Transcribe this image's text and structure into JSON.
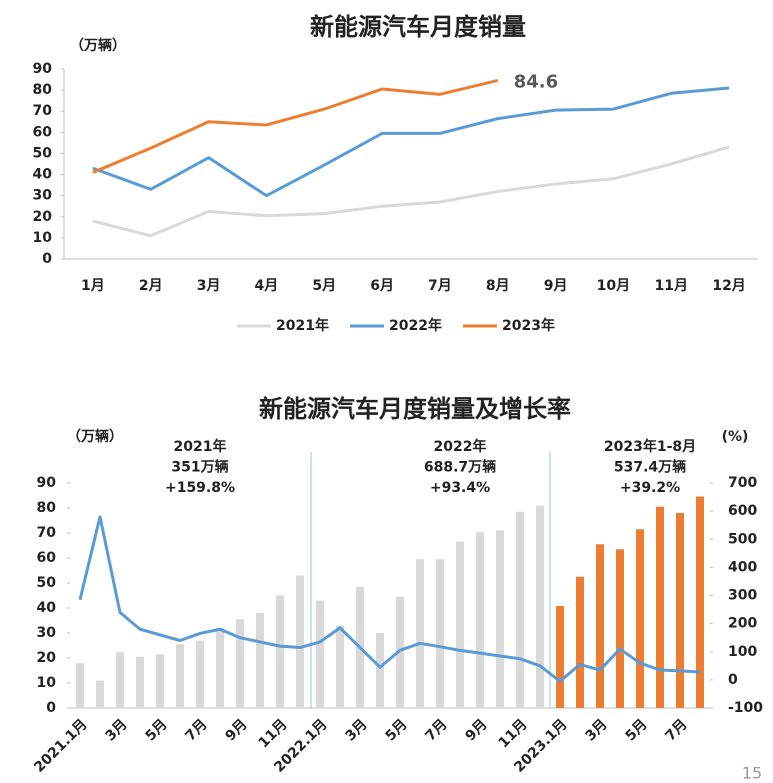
{
  "chart_data": [
    {
      "type": "line",
      "title": "新能源汽车月度销量",
      "y_label": "（万辆）",
      "categories": [
        "1月",
        "2月",
        "3月",
        "4月",
        "5月",
        "6月",
        "7月",
        "8月",
        "9月",
        "10月",
        "11月",
        "12月"
      ],
      "series": [
        {
          "name": "2021年",
          "color": "#d9d9d9",
          "values": [
            18,
            11,
            22.5,
            20.5,
            21.5,
            25,
            27,
            32,
            35.5,
            38,
            45,
            53
          ]
        },
        {
          "name": "2022年",
          "color": "#5b9bd5",
          "values": [
            43,
            33,
            48,
            30,
            44.5,
            59.5,
            59.5,
            66.5,
            70.5,
            71,
            78.5,
            81
          ]
        },
        {
          "name": "2023年",
          "color": "#ed7d31",
          "values": [
            41,
            52.5,
            65,
            63.5,
            71,
            80.5,
            78,
            84.6,
            null,
            null,
            null,
            null
          ]
        }
      ],
      "ylim": [
        0,
        90
      ],
      "yticks": [
        0,
        10,
        20,
        30,
        40,
        50,
        60,
        70,
        80,
        90
      ],
      "grid": false,
      "legend": "bottom"
    },
    {
      "type": "bar_line",
      "title": "新能源汽车月度销量及增长率",
      "y_label": "（万辆）",
      "y2_label": "(%)",
      "categories": [
        "2021.1月",
        null,
        "3月",
        null,
        "5月",
        null,
        "7月",
        null,
        "9月",
        null,
        "11月",
        null,
        "2022.1月",
        null,
        "3月",
        null,
        "5月",
        null,
        "7月",
        null,
        "9月",
        null,
        "11月",
        null,
        "2023.1月",
        null,
        "3月",
        null,
        "5月",
        null,
        "7月",
        null
      ],
      "series": [
        {
          "type": "bar",
          "colors": [
            "#d9d9d9",
            "#d9d9d9",
            "#d9d9d9",
            "#d9d9d9",
            "#d9d9d9",
            "#d9d9d9",
            "#d9d9d9",
            "#d9d9d9",
            "#d9d9d9",
            "#d9d9d9",
            "#d9d9d9",
            "#d9d9d9",
            "#d9d9d9",
            "#d9d9d9",
            "#d9d9d9",
            "#d9d9d9",
            "#d9d9d9",
            "#d9d9d9",
            "#d9d9d9",
            "#d9d9d9",
            "#d9d9d9",
            "#d9d9d9",
            "#d9d9d9",
            "#d9d9d9",
            "#ed7d31",
            "#ed7d31",
            "#ed7d31",
            "#ed7d31",
            "#ed7d31",
            "#ed7d31",
            "#ed7d31",
            "#ed7d31"
          ],
          "values": [
            18,
            11,
            22.5,
            20.5,
            21.5,
            25.5,
            27,
            32,
            35.5,
            38,
            45,
            53,
            43,
            33,
            48.5,
            30,
            44.5,
            59.5,
            59.5,
            66.5,
            70.5,
            71,
            78.5,
            81,
            40.8,
            52.5,
            65.5,
            63.5,
            71.5,
            80.5,
            78,
            84.6
          ]
        },
        {
          "type": "line",
          "axis": "y2",
          "color": "#5b9bd5",
          "values": [
            285,
            580,
            240,
            180,
            160,
            140,
            165,
            180,
            150,
            135,
            120,
            115,
            135,
            185,
            115,
            45,
            105,
            130,
            118,
            105,
            95,
            85,
            75,
            50,
            -5,
            55,
            35,
            110,
            60,
            35,
            32,
            28
          ]
        }
      ],
      "ylim": [
        0,
        90
      ],
      "yticks": [
        0,
        10,
        20,
        30,
        40,
        50,
        60,
        70,
        80,
        90
      ],
      "y2lim": [
        -100,
        700
      ],
      "y2ticks": [
        -100,
        0,
        100,
        200,
        300,
        400,
        500,
        600,
        700
      ],
      "annotations": [
        {
          "lines": [
            "2021年",
            "351万辆",
            "+159.8%"
          ]
        },
        {
          "lines": [
            "2022年",
            "688.7万辆",
            "+93.4%"
          ]
        },
        {
          "lines": [
            "2023年1-8月",
            "537.4万辆",
            "+39.2%"
          ]
        }
      ]
    }
  ],
  "page_number": "15"
}
